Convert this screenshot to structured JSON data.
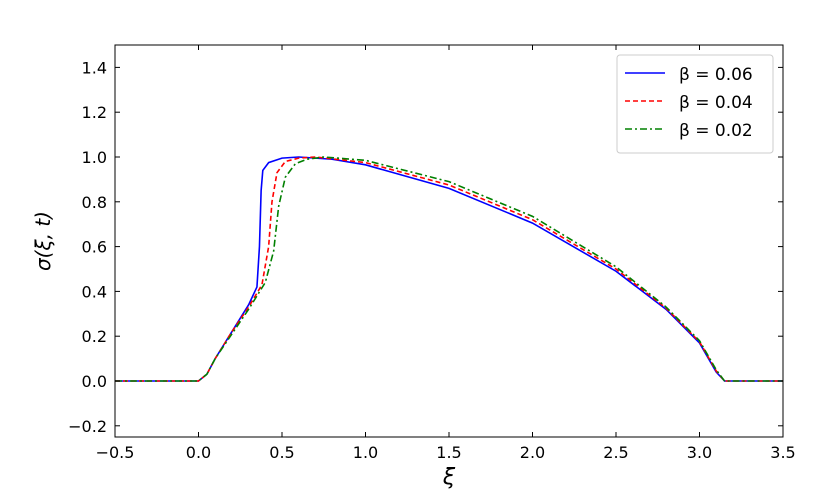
{
  "chart_data": {
    "type": "line",
    "xlabel": "ξ",
    "ylabel": "σ(ξ, t)",
    "xlim": [
      -0.5,
      3.5
    ],
    "ylim": [
      -0.25,
      1.5
    ],
    "xticks": [
      "−0.5",
      "0.0",
      "0.5",
      "1.0",
      "1.5",
      "2.0",
      "2.5",
      "3.0",
      "3.5"
    ],
    "xtick_values": [
      -0.5,
      0,
      0.5,
      1,
      1.5,
      2,
      2.5,
      3,
      3.5
    ],
    "yticks": [
      "−0.2",
      "0.0",
      "0.2",
      "0.4",
      "0.6",
      "0.8",
      "1.0",
      "1.2",
      "1.4"
    ],
    "ytick_values": [
      -0.2,
      0,
      0.2,
      0.4,
      0.6,
      0.8,
      1.0,
      1.2,
      1.4
    ],
    "grid": false,
    "legend_placement": "top-right",
    "series": [
      {
        "name": "β = 0.06",
        "color": "#0000ff",
        "dash": "solid",
        "x": [
          -0.5,
          0,
          0.05,
          0.1,
          0.2,
          0.3,
          0.35,
          0.365,
          0.375,
          0.385,
          0.42,
          0.5,
          0.6,
          0.8,
          1.0,
          1.5,
          2.0,
          2.5,
          2.8,
          3.0,
          3.1,
          3.15,
          3.5
        ],
        "y": [
          0,
          0,
          0.03,
          0.1,
          0.22,
          0.34,
          0.42,
          0.6,
          0.85,
          0.94,
          0.975,
          0.995,
          1.0,
          0.99,
          0.965,
          0.86,
          0.705,
          0.49,
          0.32,
          0.17,
          0.04,
          0,
          0
        ]
      },
      {
        "name": "β = 0.04",
        "color": "#ff0000",
        "dash": "dashed",
        "x": [
          -0.5,
          0,
          0.05,
          0.1,
          0.2,
          0.3,
          0.38,
          0.42,
          0.44,
          0.47,
          0.52,
          0.6,
          0.7,
          1.0,
          1.5,
          2.0,
          2.5,
          2.8,
          3.0,
          3.1,
          3.15,
          3.5
        ],
        "y": [
          0,
          0,
          0.03,
          0.1,
          0.22,
          0.33,
          0.43,
          0.6,
          0.8,
          0.93,
          0.98,
          0.995,
          1.0,
          0.975,
          0.875,
          0.72,
          0.5,
          0.325,
          0.175,
          0.045,
          0,
          0
        ]
      },
      {
        "name": "β = 0.02",
        "color": "#008000",
        "dash": "dashdot",
        "x": [
          -0.5,
          0,
          0.05,
          0.1,
          0.2,
          0.3,
          0.4,
          0.45,
          0.48,
          0.52,
          0.58,
          0.65,
          0.75,
          1.0,
          1.5,
          2.0,
          2.5,
          2.8,
          3.0,
          3.1,
          3.15,
          3.5
        ],
        "y": [
          0,
          0,
          0.03,
          0.1,
          0.21,
          0.32,
          0.44,
          0.58,
          0.78,
          0.91,
          0.97,
          0.99,
          1.0,
          0.985,
          0.89,
          0.735,
          0.51,
          0.33,
          0.18,
          0.05,
          0,
          0
        ]
      }
    ]
  }
}
